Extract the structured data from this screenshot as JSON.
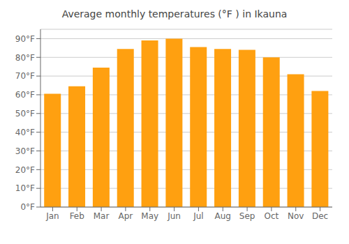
{
  "chart_data": {
    "type": "bar",
    "title": "Average monthly temperatures (°F ) in Ikauna",
    "categories": [
      "Jan",
      "Feb",
      "Mar",
      "Apr",
      "May",
      "Jun",
      "Jul",
      "Aug",
      "Sep",
      "Oct",
      "Nov",
      "Dec"
    ],
    "values": [
      60.5,
      64.5,
      74.5,
      84.5,
      89,
      90,
      85.5,
      84.5,
      84,
      80,
      71,
      62
    ],
    "color": "#FFA010",
    "ylim": [
      0,
      95
    ],
    "yticks": [
      {
        "value": 0,
        "label": "0°F"
      },
      {
        "value": 10,
        "label": "10°F"
      },
      {
        "value": 20,
        "label": "20°F"
      },
      {
        "value": 30,
        "label": "30°F"
      },
      {
        "value": 40,
        "label": "40°F"
      },
      {
        "value": 50,
        "label": "50°F"
      },
      {
        "value": 60,
        "label": "60°F"
      },
      {
        "value": 70,
        "label": "70°F"
      },
      {
        "value": 80,
        "label": "80°F"
      },
      {
        "value": 90,
        "label": "90°F"
      }
    ],
    "grid": true
  }
}
